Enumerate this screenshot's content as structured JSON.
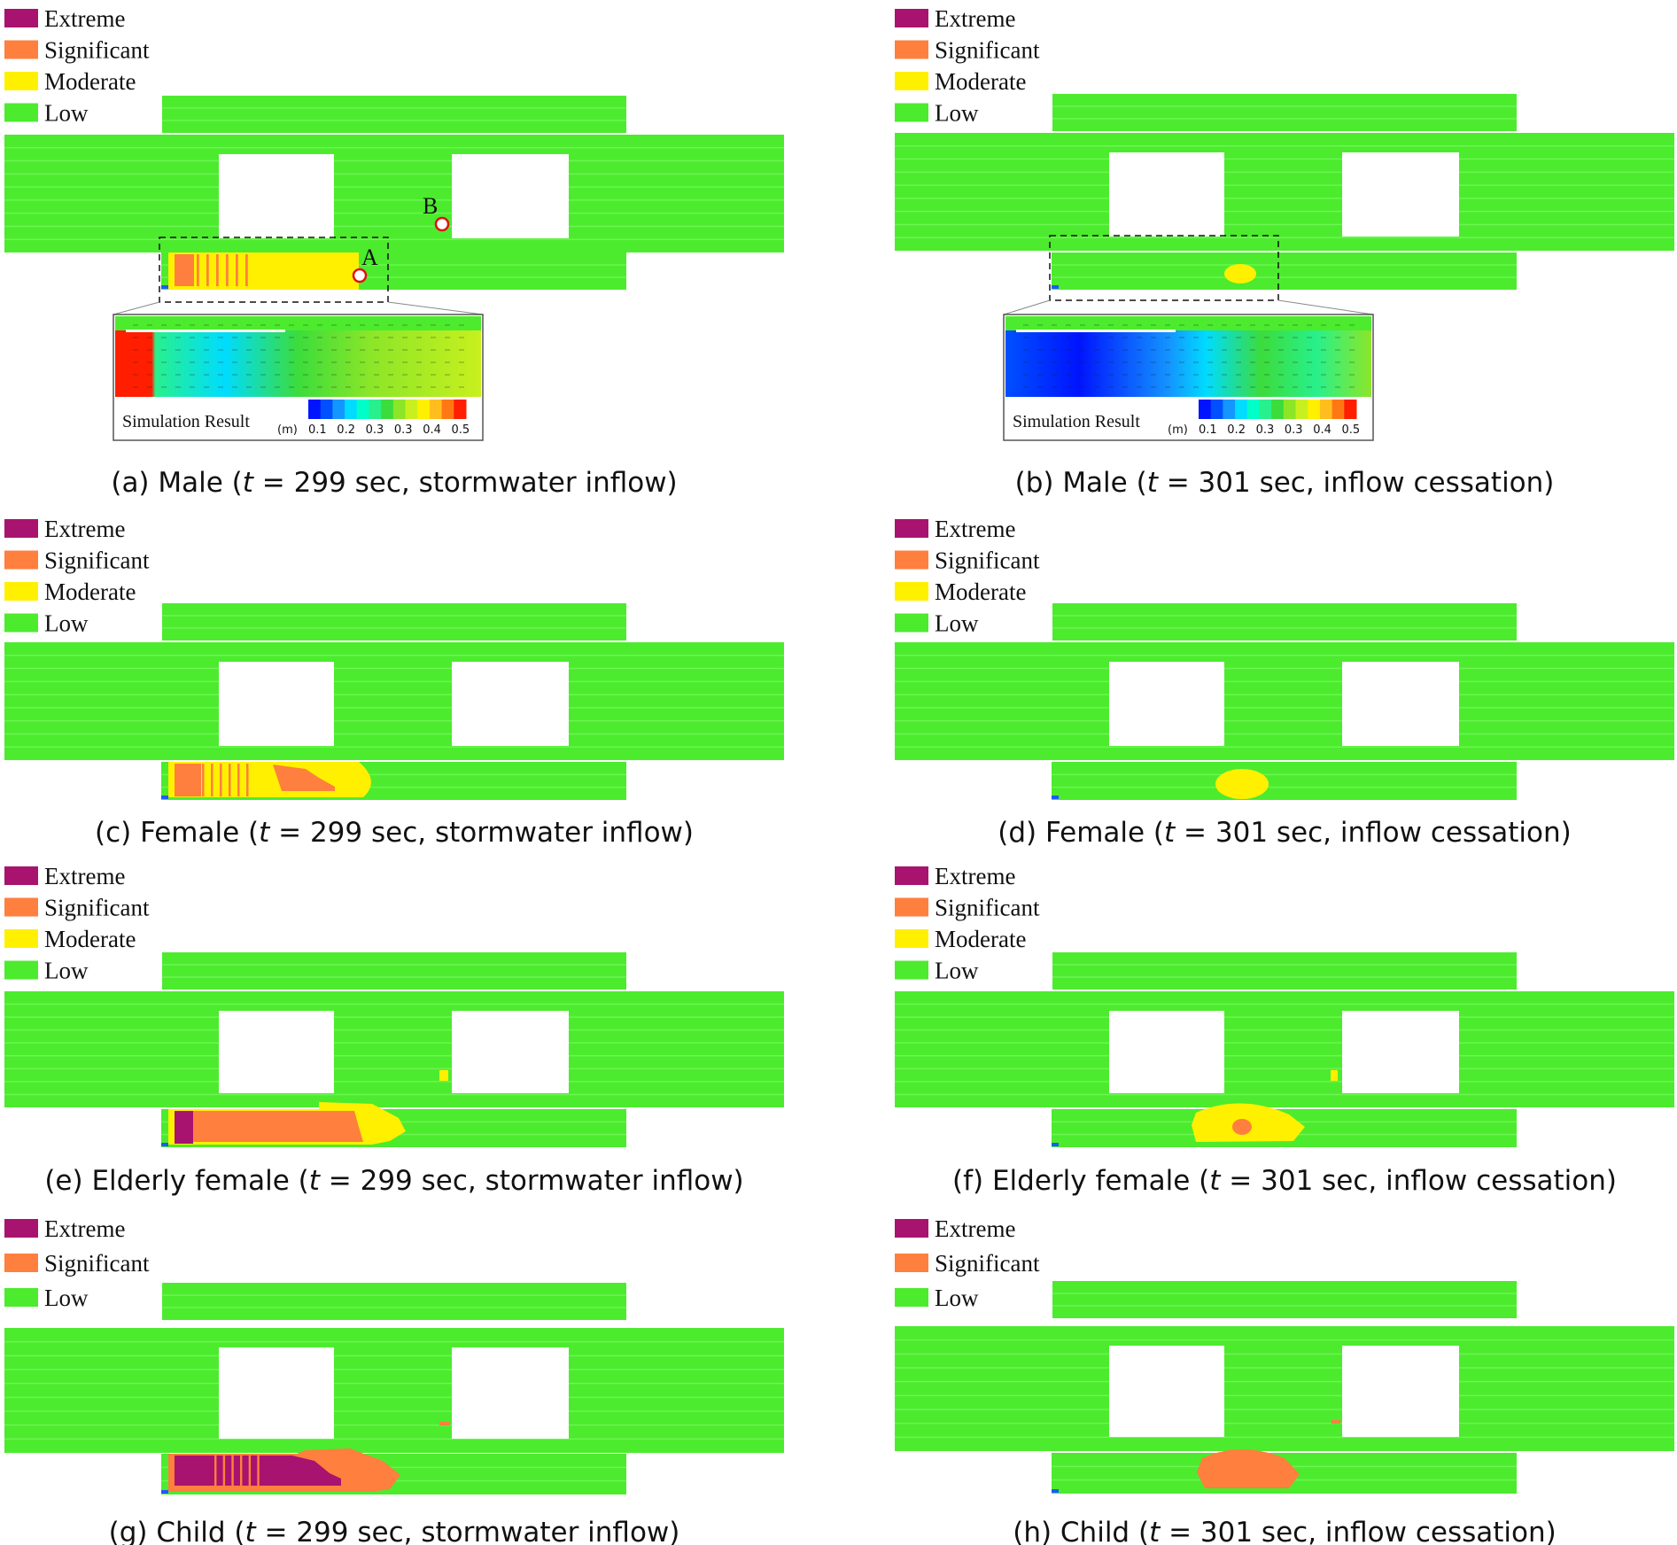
{
  "legend_colors": {
    "Extreme": "#A8136F",
    "Significant": "#FF7F3E",
    "Moderate": "#FFF000",
    "Low": "#4CEB2E"
  },
  "colormap_colors": [
    "#0014FF",
    "#0050FF",
    "#1496FF",
    "#00DCFF",
    "#00FFC8",
    "#28F08C",
    "#3CDC3C",
    "#8CE628",
    "#C8F01E",
    "#FFF000",
    "#FFBE1E",
    "#FF7814",
    "#FF1E00"
  ],
  "colorbar_ticks": [
    "0.1",
    "0.2",
    "0.3",
    "0.3",
    "0.4",
    "0.5"
  ],
  "panels": [
    {
      "id": "a",
      "caption_pre": "(a) Male (",
      "caption_post": " = 299 sec, stormwater inflow)",
      "legend": [
        "Extreme",
        "Significant",
        "Moderate",
        "Low"
      ],
      "inset": {
        "title": "Simulation Result",
        "unit": "(m)",
        "state": "inflow"
      },
      "markers": [
        {
          "label": "A"
        },
        {
          "label": "B"
        }
      ]
    },
    {
      "id": "b",
      "caption_pre": "(b) Male (",
      "caption_post": " = 301 sec, inflow cessation)",
      "legend": [
        "Extreme",
        "Significant",
        "Moderate",
        "Low"
      ],
      "inset": {
        "title": "Simulation Result",
        "unit": "(m)",
        "state": "cessation"
      }
    },
    {
      "id": "c",
      "caption_pre": "(c) Female (",
      "caption_post": " = 299 sec, stormwater inflow)",
      "legend": [
        "Extreme",
        "Significant",
        "Moderate",
        "Low"
      ]
    },
    {
      "id": "d",
      "caption_pre": "(d) Female (",
      "caption_post": " = 301 sec, inflow cessation)",
      "legend": [
        "Extreme",
        "Significant",
        "Moderate",
        "Low"
      ]
    },
    {
      "id": "e",
      "caption_pre": "(e) Elderly female (",
      "caption_post": " = 299 sec, stormwater inflow)",
      "legend": [
        "Extreme",
        "Significant",
        "Moderate",
        "Low"
      ]
    },
    {
      "id": "f",
      "caption_pre": "(f) Elderly female (",
      "caption_post": " = 301 sec, inflow cessation)",
      "legend": [
        "Extreme",
        "Significant",
        "Moderate",
        "Low"
      ]
    },
    {
      "id": "g",
      "caption_pre": "(g) Child (",
      "caption_post": " = 299 sec, stormwater inflow)",
      "legend": [
        "Extreme",
        "Significant",
        "Low"
      ]
    },
    {
      "id": "h",
      "caption_pre": "(h) Child (",
      "caption_post": " = 301 sec, inflow cessation)",
      "legend": [
        "Extreme",
        "Significant",
        "Low"
      ]
    }
  ],
  "time_symbol": "t"
}
